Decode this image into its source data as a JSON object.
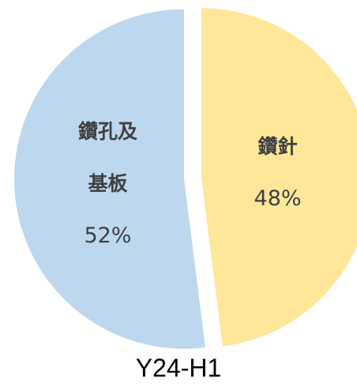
{
  "chart_data": {
    "type": "pie",
    "title": "Y24-H1",
    "categories": [
      "鑽針",
      "鑽孔及基板"
    ],
    "values": [
      48,
      52
    ],
    "value_labels": [
      "48%",
      "52%"
    ],
    "colors": [
      "#FFE699",
      "#BDD7EE"
    ]
  }
}
